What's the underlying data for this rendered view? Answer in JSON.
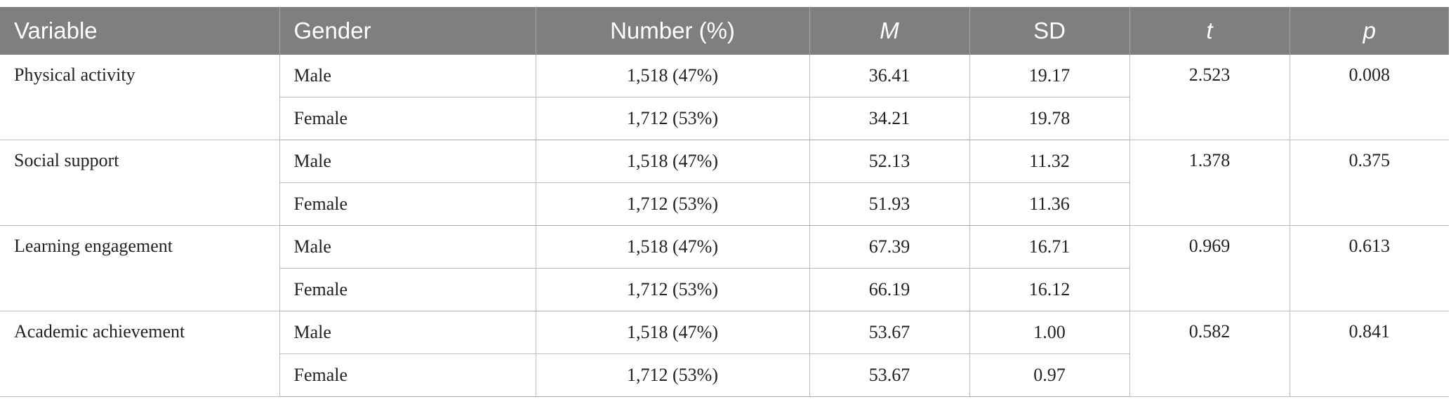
{
  "table": {
    "headers": {
      "variable": "Variable",
      "gender": "Gender",
      "number": "Number (%)",
      "m": "M",
      "sd": "SD",
      "t": "t",
      "p": "p"
    },
    "rows": [
      {
        "variable": "Physical activity",
        "t": "2.523",
        "p": "0.008",
        "male": {
          "gender": "Male",
          "number": "1,518 (47%)",
          "m": "36.41",
          "sd": "19.17"
        },
        "female": {
          "gender": "Female",
          "number": "1,712 (53%)",
          "m": "34.21",
          "sd": "19.78"
        }
      },
      {
        "variable": "Social support",
        "t": "1.378",
        "p": "0.375",
        "male": {
          "gender": "Male",
          "number": "1,518 (47%)",
          "m": "52.13",
          "sd": "11.32"
        },
        "female": {
          "gender": "Female",
          "number": "1,712 (53%)",
          "m": "51.93",
          "sd": "11.36"
        }
      },
      {
        "variable": "Learning engagement",
        "t": "0.969",
        "p": "0.613",
        "male": {
          "gender": "Male",
          "number": "1,518 (47%)",
          "m": "67.39",
          "sd": "16.71"
        },
        "female": {
          "gender": "Female",
          "number": "1,712 (53%)",
          "m": "66.19",
          "sd": "16.12"
        }
      },
      {
        "variable": "Academic achievement",
        "t": "0.582",
        "p": "0.841",
        "male": {
          "gender": "Male",
          "number": "1,518 (47%)",
          "m": "53.67",
          "sd": "1.00"
        },
        "female": {
          "gender": "Female",
          "number": "1,712 (53%)",
          "m": "53.67",
          "sd": "0.97"
        }
      }
    ]
  }
}
